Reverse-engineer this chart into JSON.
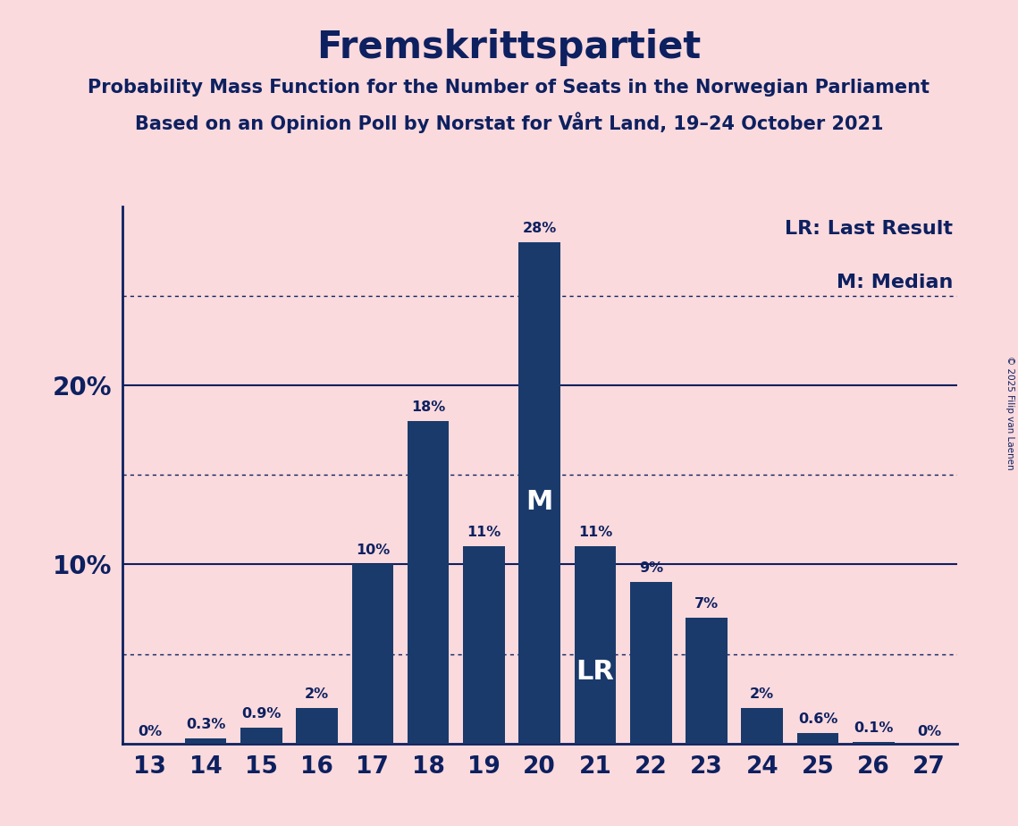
{
  "title": "Fremskrittspartiet",
  "subtitle1": "Probability Mass Function for the Number of Seats in the Norwegian Parliament",
  "subtitle2": "Based on an Opinion Poll by Norstat for Vårt Land, 19–24 October 2021",
  "copyright": "© 2025 Filip van Laenen",
  "seats": [
    13,
    14,
    15,
    16,
    17,
    18,
    19,
    20,
    21,
    22,
    23,
    24,
    25,
    26,
    27
  ],
  "probabilities": [
    0.0,
    0.3,
    0.9,
    2.0,
    10.0,
    18.0,
    11.0,
    28.0,
    11.0,
    9.0,
    7.0,
    2.0,
    0.6,
    0.1,
    0.0
  ],
  "bar_labels": [
    "0%",
    "0.3%",
    "0.9%",
    "2%",
    "10%",
    "18%",
    "11%",
    "28%",
    "11%",
    "9%",
    "7%",
    "2%",
    "0.6%",
    "0.1%",
    "0%"
  ],
  "last_result_seat": 21,
  "median_seat": 20,
  "bar_color": "#1a3a6b",
  "background_color": "#fadadd",
  "text_color": "#0d2060",
  "yticks": [
    10,
    20
  ],
  "ytick_labels": [
    "10%",
    "20%"
  ],
  "ylim": [
    0,
    30
  ],
  "legend_lr": "LR: Last Result",
  "legend_m": "M: Median",
  "solid_gridlines": [
    10,
    20
  ],
  "dotted_gridlines": [
    5,
    15,
    25
  ]
}
